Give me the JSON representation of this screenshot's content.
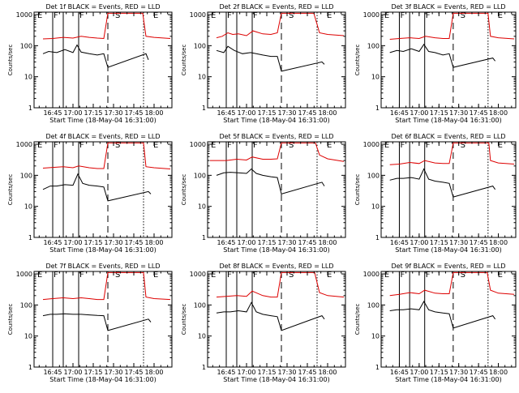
{
  "colors": {
    "events": "#000000",
    "lld": "#dd0000",
    "axis": "#000000",
    "background": "#ffffff"
  },
  "chart_data": {
    "type": "line",
    "shared": {
      "xlabel": "Start Time (18-May-04 16:31:00)",
      "ylabel": "Counts/sec",
      "x_ticks": [
        "16:45",
        "17:00",
        "17:15",
        "17:30",
        "17:45",
        "18:00"
      ],
      "x_tick_minutes": [
        16.75,
        17.0,
        17.25,
        17.5,
        17.75,
        18.0
      ],
      "x_range": [
        16.52,
        18.22
      ],
      "y_ticks": [
        "1",
        "10",
        "100",
        "1000"
      ],
      "y_range": [
        1,
        1200
      ],
      "yscale": "log",
      "series_names": [
        "Events",
        "LLD"
      ],
      "marker_labels": [
        {
          "text": "E",
          "x": 16.55
        },
        {
          "text": "F",
          "x": 16.75
        },
        {
          "text": "F",
          "x": 17.07
        },
        {
          "text": "S",
          "x": 17.51
        },
        {
          "text": "E",
          "x": 17.98
        }
      ],
      "solid_lines": [
        16.75,
        16.88,
        17.07
      ],
      "dashed_lines": [
        17.43
      ],
      "dotted_lines": [
        17.87
      ]
    },
    "panels": [
      {
        "title": "Det 1f BLACK = Events, RED = LLD",
        "lld": [
          [
            16.63,
            165
          ],
          [
            16.75,
            170
          ],
          [
            16.88,
            185
          ],
          [
            17.0,
            175
          ],
          [
            17.1,
            200
          ],
          [
            17.2,
            185
          ],
          [
            17.3,
            175
          ],
          [
            17.38,
            170
          ],
          [
            17.43,
            1100
          ],
          [
            17.86,
            1100
          ],
          [
            17.9,
            200
          ],
          [
            18.0,
            185
          ],
          [
            18.2,
            170
          ]
        ],
        "events": [
          [
            16.63,
            55
          ],
          [
            16.7,
            65
          ],
          [
            16.8,
            60
          ],
          [
            16.9,
            75
          ],
          [
            17.0,
            60
          ],
          [
            17.05,
            105
          ],
          [
            17.1,
            62
          ],
          [
            17.2,
            55
          ],
          [
            17.3,
            50
          ],
          [
            17.38,
            55
          ],
          [
            17.43,
            20
          ],
          [
            17.9,
            55
          ],
          [
            17.93,
            35
          ]
        ]
      },
      {
        "title": "Det 2f BLACK = Events, RED = LLD",
        "lld": [
          [
            16.63,
            180
          ],
          [
            16.7,
            200
          ],
          [
            16.77,
            260
          ],
          [
            16.83,
            230
          ],
          [
            16.9,
            240
          ],
          [
            17.0,
            210
          ],
          [
            17.08,
            300
          ],
          [
            17.2,
            240
          ],
          [
            17.3,
            230
          ],
          [
            17.38,
            260
          ],
          [
            17.43,
            1100
          ],
          [
            17.83,
            1100
          ],
          [
            17.9,
            260
          ],
          [
            18.0,
            230
          ],
          [
            18.2,
            210
          ]
        ],
        "events": [
          [
            16.63,
            70
          ],
          [
            16.72,
            60
          ],
          [
            16.77,
            95
          ],
          [
            16.85,
            70
          ],
          [
            16.95,
            55
          ],
          [
            17.05,
            60
          ],
          [
            17.12,
            55
          ],
          [
            17.2,
            50
          ],
          [
            17.3,
            45
          ],
          [
            17.38,
            45
          ],
          [
            17.43,
            15
          ],
          [
            17.93,
            30
          ],
          [
            17.96,
            25
          ]
        ]
      },
      {
        "title": "Det 3f BLACK = Events, RED = LLD",
        "lld": [
          [
            16.63,
            160
          ],
          [
            16.75,
            170
          ],
          [
            16.88,
            180
          ],
          [
            17.0,
            170
          ],
          [
            17.08,
            200
          ],
          [
            17.2,
            180
          ],
          [
            17.3,
            170
          ],
          [
            17.38,
            170
          ],
          [
            17.43,
            1100
          ],
          [
            17.87,
            1100
          ],
          [
            17.9,
            200
          ],
          [
            18.0,
            180
          ],
          [
            18.2,
            165
          ]
        ],
        "events": [
          [
            16.63,
            60
          ],
          [
            16.72,
            70
          ],
          [
            16.8,
            65
          ],
          [
            16.9,
            80
          ],
          [
            17.0,
            65
          ],
          [
            17.06,
            110
          ],
          [
            17.12,
            65
          ],
          [
            17.2,
            60
          ],
          [
            17.3,
            50
          ],
          [
            17.38,
            55
          ],
          [
            17.43,
            20
          ],
          [
            17.93,
            40
          ],
          [
            17.96,
            32
          ]
        ]
      },
      {
        "title": "Det 4f BLACK = Events, RED = LLD",
        "lld": [
          [
            16.63,
            170
          ],
          [
            16.75,
            180
          ],
          [
            16.88,
            190
          ],
          [
            17.0,
            175
          ],
          [
            17.07,
            200
          ],
          [
            17.2,
            175
          ],
          [
            17.3,
            165
          ],
          [
            17.38,
            165
          ],
          [
            17.43,
            1100
          ],
          [
            17.87,
            1100
          ],
          [
            17.9,
            190
          ],
          [
            18.0,
            175
          ],
          [
            18.2,
            160
          ]
        ],
        "events": [
          [
            16.63,
            35
          ],
          [
            16.72,
            45
          ],
          [
            16.8,
            45
          ],
          [
            16.9,
            50
          ],
          [
            17.0,
            48
          ],
          [
            17.06,
            110
          ],
          [
            17.12,
            55
          ],
          [
            17.2,
            48
          ],
          [
            17.3,
            45
          ],
          [
            17.38,
            42
          ],
          [
            17.43,
            15
          ],
          [
            17.93,
            30
          ],
          [
            17.96,
            25
          ]
        ]
      },
      {
        "title": "Det 5f BLACK = Events, RED = LLD",
        "lld": [
          [
            16.55,
            300
          ],
          [
            16.75,
            300
          ],
          [
            16.88,
            330
          ],
          [
            17.0,
            310
          ],
          [
            17.07,
            390
          ],
          [
            17.2,
            330
          ],
          [
            17.3,
            330
          ],
          [
            17.38,
            340
          ],
          [
            17.43,
            1100
          ],
          [
            17.85,
            1100
          ],
          [
            17.9,
            450
          ],
          [
            18.0,
            340
          ],
          [
            18.2,
            280
          ]
        ],
        "events": [
          [
            16.63,
            100
          ],
          [
            16.72,
            120
          ],
          [
            16.8,
            125
          ],
          [
            16.9,
            120
          ],
          [
            17.0,
            115
          ],
          [
            17.06,
            160
          ],
          [
            17.12,
            115
          ],
          [
            17.2,
            100
          ],
          [
            17.3,
            90
          ],
          [
            17.38,
            85
          ],
          [
            17.43,
            25
          ],
          [
            17.93,
            60
          ],
          [
            17.96,
            45
          ]
        ]
      },
      {
        "title": "Det 6f BLACK = Events, RED = LLD",
        "lld": [
          [
            16.63,
            220
          ],
          [
            16.75,
            230
          ],
          [
            16.88,
            260
          ],
          [
            17.0,
            240
          ],
          [
            17.07,
            300
          ],
          [
            17.2,
            250
          ],
          [
            17.3,
            240
          ],
          [
            17.38,
            240
          ],
          [
            17.43,
            1100
          ],
          [
            17.88,
            1100
          ],
          [
            17.9,
            300
          ],
          [
            18.0,
            250
          ],
          [
            18.2,
            230
          ]
        ],
        "events": [
          [
            16.63,
            70
          ],
          [
            16.72,
            80
          ],
          [
            16.8,
            80
          ],
          [
            16.9,
            85
          ],
          [
            17.0,
            75
          ],
          [
            17.06,
            160
          ],
          [
            17.12,
            75
          ],
          [
            17.2,
            65
          ],
          [
            17.3,
            60
          ],
          [
            17.38,
            55
          ],
          [
            17.43,
            20
          ],
          [
            17.93,
            45
          ],
          [
            17.96,
            35
          ]
        ]
      },
      {
        "title": "Det 7f BLACK = Events, RED = LLD",
        "lld": [
          [
            16.63,
            150
          ],
          [
            16.75,
            160
          ],
          [
            16.88,
            170
          ],
          [
            17.0,
            160
          ],
          [
            17.1,
            170
          ],
          [
            17.2,
            160
          ],
          [
            17.3,
            150
          ],
          [
            17.38,
            150
          ],
          [
            17.43,
            1100
          ],
          [
            17.87,
            1100
          ],
          [
            17.9,
            180
          ],
          [
            18.0,
            160
          ],
          [
            18.2,
            150
          ]
        ],
        "events": [
          [
            16.63,
            45
          ],
          [
            16.72,
            50
          ],
          [
            16.8,
            50
          ],
          [
            16.9,
            52
          ],
          [
            17.0,
            50
          ],
          [
            17.1,
            50
          ],
          [
            17.2,
            48
          ],
          [
            17.3,
            46
          ],
          [
            17.38,
            45
          ],
          [
            17.43,
            15
          ],
          [
            17.93,
            35
          ],
          [
            17.96,
            28
          ]
        ]
      },
      {
        "title": "Det 8f BLACK = Events, RED = LLD",
        "lld": [
          [
            16.63,
            180
          ],
          [
            16.75,
            190
          ],
          [
            16.88,
            200
          ],
          [
            17.0,
            190
          ],
          [
            17.07,
            280
          ],
          [
            17.2,
            200
          ],
          [
            17.3,
            180
          ],
          [
            17.38,
            180
          ],
          [
            17.43,
            1100
          ],
          [
            17.84,
            1100
          ],
          [
            17.9,
            250
          ],
          [
            18.0,
            200
          ],
          [
            18.2,
            180
          ]
        ],
        "events": [
          [
            16.63,
            55
          ],
          [
            16.72,
            60
          ],
          [
            16.8,
            60
          ],
          [
            16.9,
            65
          ],
          [
            17.0,
            60
          ],
          [
            17.06,
            120
          ],
          [
            17.12,
            60
          ],
          [
            17.2,
            50
          ],
          [
            17.3,
            45
          ],
          [
            17.38,
            42
          ],
          [
            17.43,
            15
          ],
          [
            17.93,
            45
          ],
          [
            17.96,
            35
          ]
        ]
      },
      {
        "title": "Det 9f BLACK = Events, RED = LLD",
        "lld": [
          [
            16.63,
            200
          ],
          [
            16.75,
            220
          ],
          [
            16.88,
            250
          ],
          [
            17.0,
            230
          ],
          [
            17.07,
            300
          ],
          [
            17.2,
            240
          ],
          [
            17.3,
            230
          ],
          [
            17.38,
            230
          ],
          [
            17.43,
            1100
          ],
          [
            17.86,
            1100
          ],
          [
            17.9,
            300
          ],
          [
            18.0,
            240
          ],
          [
            18.2,
            220
          ]
        ],
        "events": [
          [
            16.63,
            65
          ],
          [
            16.72,
            70
          ],
          [
            16.8,
            70
          ],
          [
            16.9,
            75
          ],
          [
            17.0,
            70
          ],
          [
            17.06,
            130
          ],
          [
            17.12,
            70
          ],
          [
            17.2,
            60
          ],
          [
            17.3,
            55
          ],
          [
            17.38,
            52
          ],
          [
            17.43,
            18
          ],
          [
            17.93,
            45
          ],
          [
            17.96,
            35
          ]
        ]
      }
    ]
  }
}
